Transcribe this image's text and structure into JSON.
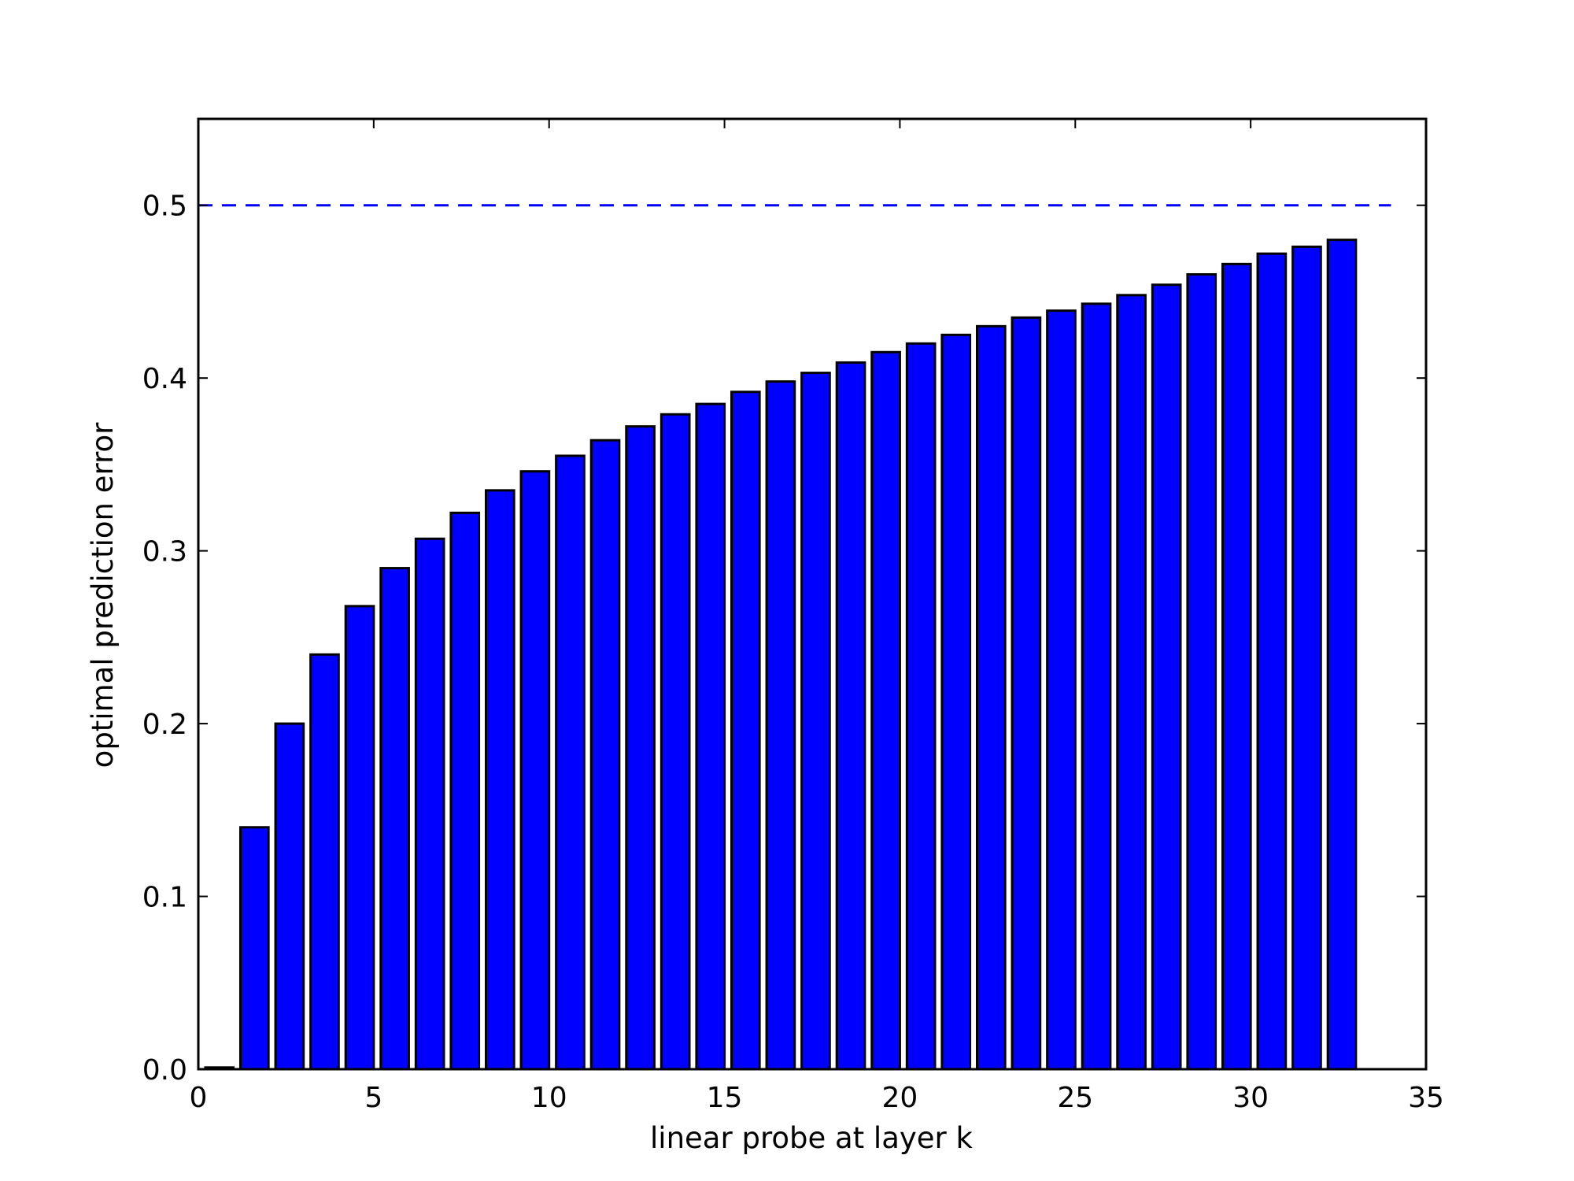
{
  "chart_data": {
    "type": "bar",
    "title": "",
    "xlabel": "linear probe at layer k",
    "ylabel": "optimal prediction error",
    "xlim": [
      0,
      35
    ],
    "ylim": [
      0,
      0.55
    ],
    "xticks": [
      "0",
      "5",
      "10",
      "15",
      "20",
      "25",
      "30",
      "35"
    ],
    "yticks": [
      "0.0",
      "0.1",
      "0.2",
      "0.3",
      "0.4",
      "0.5"
    ],
    "grid": false,
    "legend": "none",
    "bar_color": "#0000ff",
    "edge_color": "#000000",
    "reference_line": {
      "y": 0.5,
      "style": "dashed",
      "color": "#0000ff"
    },
    "x": [
      0,
      1,
      2,
      3,
      4,
      5,
      6,
      7,
      8,
      9,
      10,
      11,
      12,
      13,
      14,
      15,
      16,
      17,
      18,
      19,
      20,
      21,
      22,
      23,
      24,
      25,
      26,
      27,
      28,
      29,
      30,
      31,
      32
    ],
    "values": [
      0.001,
      0.14,
      0.2,
      0.24,
      0.268,
      0.29,
      0.307,
      0.322,
      0.335,
      0.346,
      0.355,
      0.364,
      0.372,
      0.379,
      0.385,
      0.392,
      0.398,
      0.403,
      0.409,
      0.415,
      0.42,
      0.425,
      0.43,
      0.435,
      0.439,
      0.443,
      0.448,
      0.454,
      0.46,
      0.466,
      0.472,
      0.476,
      0.48
    ]
  }
}
